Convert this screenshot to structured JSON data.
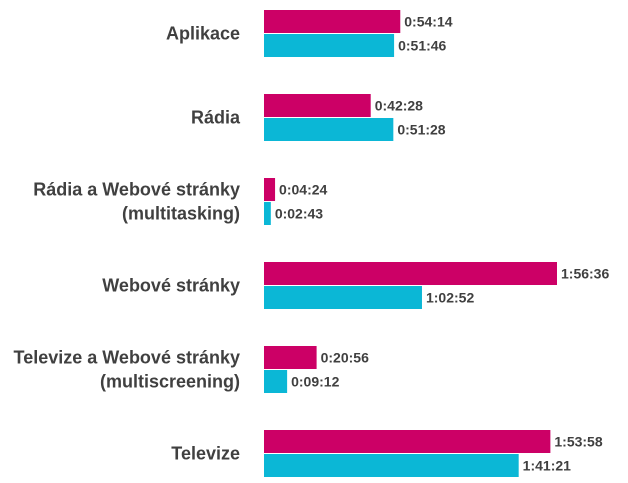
{
  "chart_data": {
    "type": "bar",
    "orientation": "horizontal",
    "categories": [
      [
        "Aplikace"
      ],
      [
        "Rádia"
      ],
      [
        "Rádia a Webové stránky",
        "(multitasking)"
      ],
      [
        "Webové stránky"
      ],
      [
        "Televize a Webové stránky",
        "(multiscreening)"
      ],
      [
        "Televize"
      ]
    ],
    "series": [
      {
        "color": "#cc0066",
        "values_seconds": [
          3254,
          2548,
          264,
          6996,
          1256,
          6838
        ],
        "value_labels": [
          "0:54:14",
          "0:42:28",
          "0:04:24",
          "1:56:36",
          "0:20:56",
          "1:53:58"
        ]
      },
      {
        "color": "#0bb7d6",
        "values_seconds": [
          3106,
          3088,
          163,
          3772,
          552,
          6081
        ],
        "value_labels": [
          "0:51:46",
          "0:51:28",
          "0:02:43",
          "1:02:52",
          "0:09:12",
          "1:41:21"
        ]
      }
    ],
    "grid": false,
    "legend": "none"
  }
}
